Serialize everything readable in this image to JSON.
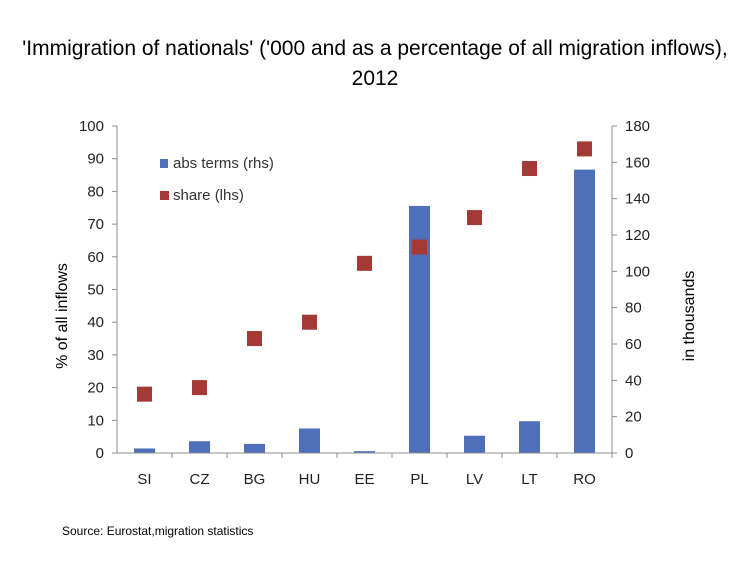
{
  "chart_data": {
    "type": "bar",
    "title": "'Immigration of nationals' ('000 and as a percentage of all migration inflows), 2012",
    "categories": [
      "SI",
      "CZ",
      "BG",
      "HU",
      "EE",
      "PL",
      "LV",
      "LT",
      "RO"
    ],
    "series": [
      {
        "name": "abs terms (rhs)",
        "type": "bar",
        "axis": "right",
        "color": "#4f6fba",
        "values": [
          2.5,
          6.5,
          5,
          13.5,
          1,
          136,
          9.5,
          17.5,
          156
        ]
      },
      {
        "name": "share (lhs)",
        "type": "scatter",
        "axis": "left",
        "color": "#a33a35",
        "values": [
          18,
          20,
          35,
          40,
          58,
          63,
          72,
          87,
          93
        ]
      }
    ],
    "y_left": {
      "label": "% of all inflows",
      "min": 0,
      "max": 100,
      "step": 10,
      "ticks": [
        "0",
        "10",
        "20",
        "30",
        "40",
        "50",
        "60",
        "70",
        "80",
        "90",
        "100"
      ]
    },
    "y_right": {
      "label": "in thousands",
      "min": 0,
      "max": 180,
      "step": 20,
      "ticks": [
        "0",
        "20",
        "40",
        "60",
        "80",
        "100",
        "120",
        "140",
        "160",
        "180"
      ]
    },
    "legend": {
      "position": "top-left",
      "entries": [
        "abs terms (rhs)",
        "share (lhs)"
      ]
    },
    "source": "Source: Eurostat,migration statistics"
  }
}
